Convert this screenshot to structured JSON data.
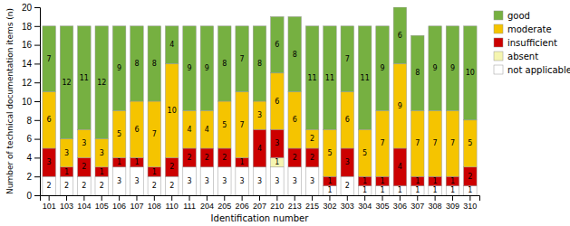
{
  "chart_data": {
    "type": "bar",
    "stacked": true,
    "data_labels": true,
    "legend": "upper right",
    "xlabel": "Identification number",
    "ylabel": "Number of technical documentation items (n)",
    "categories": [
      "101",
      "103",
      "104",
      "105",
      "106",
      "107",
      "108",
      "110",
      "111",
      "204",
      "205",
      "206",
      "207",
      "210",
      "213",
      "215",
      "302",
      "303",
      "304",
      "305",
      "306",
      "307",
      "308",
      "309",
      "310"
    ],
    "series": [
      {
        "name": "not applicable",
        "color": "#ffffff",
        "values": [
          2,
          2,
          2,
          2,
          3,
          3,
          2,
          2,
          3,
          3,
          3,
          3,
          3,
          3,
          3,
          3,
          1,
          2,
          1,
          1,
          1,
          1,
          1,
          1,
          1
        ]
      },
      {
        "name": "absent",
        "color": "#f5f5b0",
        "values": [
          0,
          0,
          0,
          0,
          0,
          0,
          0,
          0,
          0,
          0,
          0,
          0,
          0,
          1,
          0,
          0,
          0,
          0,
          0,
          0,
          0,
          0,
          0,
          0,
          0
        ]
      },
      {
        "name": "insufficient",
        "color": "#cc0000",
        "values": [
          3,
          1,
          2,
          1,
          1,
          1,
          1,
          2,
          2,
          2,
          2,
          1,
          4,
          3,
          2,
          2,
          1,
          3,
          1,
          1,
          4,
          1,
          1,
          1,
          2
        ]
      },
      {
        "name": "moderate",
        "color": "#f5c400",
        "values": [
          6,
          3,
          3,
          3,
          5,
          6,
          7,
          10,
          4,
          4,
          5,
          7,
          3,
          6,
          6,
          2,
          5,
          6,
          5,
          7,
          9,
          7,
          7,
          7,
          5
        ]
      },
      {
        "name": "good",
        "color": "#76b041",
        "values": [
          7,
          12,
          11,
          12,
          9,
          8,
          8,
          4,
          9,
          9,
          8,
          7,
          8,
          6,
          8,
          11,
          11,
          7,
          11,
          9,
          6,
          8,
          9,
          9,
          10
        ]
      }
    ],
    "ylim": [
      0,
      20
    ],
    "yticks": [
      0,
      2,
      4,
      6,
      8,
      10,
      12,
      14,
      16,
      18,
      20
    ]
  }
}
